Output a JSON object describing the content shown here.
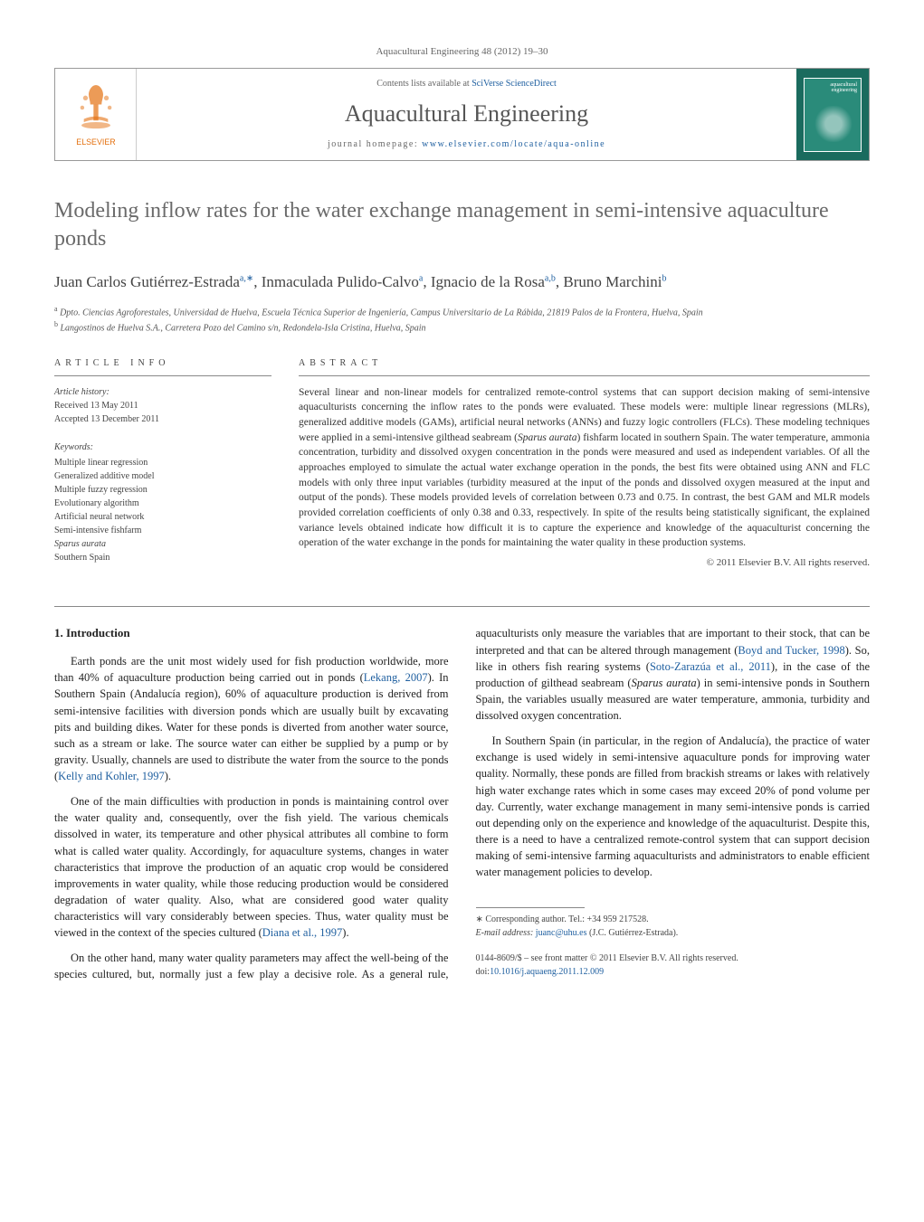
{
  "journal_ref": "Aquacultural Engineering 48 (2012) 19–30",
  "header": {
    "contents_prefix": "Contents lists available at ",
    "contents_link": "SciVerse ScienceDirect",
    "journal_name": "Aquacultural Engineering",
    "homepage_prefix": "journal homepage: ",
    "homepage_url": "www.elsevier.com/locate/aqua-online",
    "elsevier_label": "ELSEVIER",
    "logo_colors": {
      "tree": "#e4700f",
      "text": "#e4700f"
    },
    "cover_colors": {
      "outer": "#1a6b5e",
      "inner": "#2a8b7a"
    }
  },
  "title": "Modeling inflow rates for the water exchange management in semi-intensive aquaculture ponds",
  "authors_html": "Juan Carlos Gutiérrez-Estrada<sup>a,∗</sup>, Inmaculada Pulido-Calvo<sup>a</sup>, Ignacio de la Rosa<sup>a,b</sup>, Bruno Marchini<sup>b</sup>",
  "affiliations": [
    "a Dpto. Ciencias Agroforestales, Universidad de Huelva, Escuela Técnica Superior de Ingeniería, Campus Universitario de La Rábida, 21819 Palos de la Frontera, Huelva, Spain",
    "b Langostinos de Huelva S.A., Carretera Pozo del Camino s/n, Redondela-Isla Cristina, Huelva, Spain"
  ],
  "info": {
    "heading": "ARTICLE INFO",
    "history_label": "Article history:",
    "received": "Received 13 May 2011",
    "accepted": "Accepted 13 December 2011",
    "keywords_label": "Keywords:",
    "keywords": [
      "Multiple linear regression",
      "Generalized additive model",
      "Multiple fuzzy regression",
      "Evolutionary algorithm",
      "Artificial neural network",
      "Semi-intensive fishfarm",
      "Sparus aurata",
      "Southern Spain"
    ]
  },
  "abstract": {
    "heading": "ABSTRACT",
    "text": "Several linear and non-linear models for centralized remote-control systems that can support decision making of semi-intensive aquaculturists concerning the inflow rates to the ponds were evaluated. These models were: multiple linear regressions (MLRs), generalized additive models (GAMs), artificial neural networks (ANNs) and fuzzy logic controllers (FLCs). These modeling techniques were applied in a semi-intensive gilthead seabream (Sparus aurata) fishfarm located in southern Spain. The water temperature, ammonia concentration, turbidity and dissolved oxygen concentration in the ponds were measured and used as independent variables. Of all the approaches employed to simulate the actual water exchange operation in the ponds, the best fits were obtained using ANN and FLC models with only three input variables (turbidity measured at the input of the ponds and dissolved oxygen measured at the input and output of the ponds). These models provided levels of correlation between 0.73 and 0.75. In contrast, the best GAM and MLR models provided correlation coefficients of only 0.38 and 0.33, respectively. In spite of the results being statistically significant, the explained variance levels obtained indicate how difficult it is to capture the experience and knowledge of the aquaculturist concerning the operation of the water exchange in the ponds for maintaining the water quality in these production systems.",
    "copyright": "© 2011 Elsevier B.V. All rights reserved."
  },
  "sections": {
    "intro_heading": "1.  Introduction",
    "paragraphs": [
      "Earth ponds are the unit most widely used for fish production worldwide, more than 40% of aquaculture production being carried out in ponds (<a>Lekang, 2007</a>). In Southern Spain (Andalucía region), 60% of aquaculture production is derived from semi-intensive facilities with diversion ponds which are usually built by excavating pits and building dikes. Water for these ponds is diverted from another water source, such as a stream or lake. The source water can either be supplied by a pump or by gravity. Usually, channels are used to distribute the water from the source to the ponds (<a>Kelly and Kohler, 1997</a>).",
      "One of the main difficulties with production in ponds is maintaining control over the water quality and, consequently, over the fish yield. The various chemicals dissolved in water, its temperature and other physical attributes all combine to form what is called water quality. Accordingly, for aquaculture systems, changes in water characteristics that improve the production of an aquatic crop would be considered improvements in water quality, while those reducing production would be considered degradation of water quality. Also, what are considered good water quality characteristics will vary considerably between species. Thus, water quality must be viewed in the context of the species cultured (<a>Diana et al., 1997</a>).",
      "On the other hand, many water quality parameters may affect the well-being of the species cultured, but, normally just a few play a decisive role. As a general rule, aquaculturists only measure the variables that are important to their stock, that can be interpreted and that can be altered through management (<a>Boyd and Tucker, 1998</a>). So, like in others fish rearing systems (<a>Soto-Zarazúa et al., 2011</a>), in the case of the production of gilthead seabream (<span class=\"species\">Sparus aurata</span>) in semi-intensive ponds in Southern Spain, the variables usually measured are water temperature, ammonia, turbidity and dissolved oxygen concentration.",
      "In Southern Spain (in particular, in the region of Andalucía), the practice of water exchange is used widely in semi-intensive aquaculture ponds for improving water quality. Normally, these ponds are filled from brackish streams or lakes with relatively high water exchange rates which in some cases may exceed 20% of pond volume per day. Currently, water exchange management in many semi-intensive ponds is carried out depending only on the experience and knowledge of the aquaculturist. Despite this, there is a need to have a centralized remote-control system that can support decision making of semi-intensive farming aquaculturists and administrators to enable efficient water management policies to develop."
    ]
  },
  "corresponding": {
    "label": "∗ Corresponding author. Tel.: +34 959 217528.",
    "email_label": "E-mail address: ",
    "email": "juanc@uhu.es",
    "email_who": " (J.C. Gutiérrez-Estrada)."
  },
  "doi": {
    "issn_line": "0144-8609/$ – see front matter © 2011 Elsevier B.V. All rights reserved.",
    "doi_label": "doi:",
    "doi": "10.1016/j.aquaeng.2011.12.009"
  }
}
